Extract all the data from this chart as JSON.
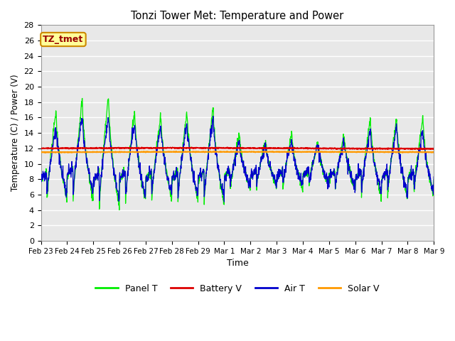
{
  "title": "Tonzi Tower Met: Temperature and Power",
  "xlabel": "Time",
  "ylabel": "Temperature (C) / Power (V)",
  "ylim": [
    0,
    28
  ],
  "yticks": [
    0,
    2,
    4,
    6,
    8,
    10,
    12,
    14,
    16,
    18,
    20,
    22,
    24,
    26,
    28
  ],
  "xtick_labels": [
    "Feb 23",
    "Feb 24",
    "Feb 25",
    "Feb 26",
    "Feb 27",
    "Feb 28",
    "Feb 29",
    "Mar 1",
    "Mar 2",
    "Mar 3",
    "Mar 4",
    "Mar 5",
    "Mar 6",
    "Mar 7",
    "Mar 8",
    "Mar 9"
  ],
  "annotation_text": "TZ_tmet",
  "annotation_bg": "#ffff99",
  "annotation_border": "#cc8800",
  "annotation_text_color": "#990000",
  "panel_t_color": "#00ee00",
  "battery_v_color": "#dd0000",
  "air_t_color": "#0000cc",
  "solar_v_color": "#ff9900",
  "plot_bg_color": "#e8e8e8",
  "grid_color": "#ffffff",
  "battery_v_value": 12.0,
  "solar_v_value": 11.5
}
